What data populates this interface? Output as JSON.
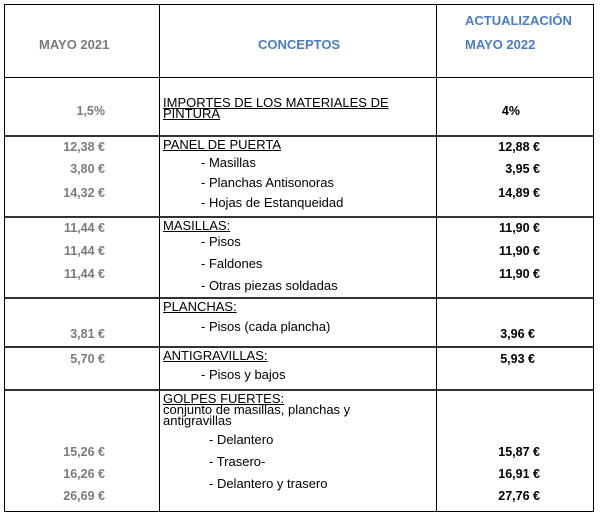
{
  "header": {
    "col_old": "MAYO 2021",
    "col_concepts": "CONCEPTOS",
    "col_new_line1": "ACTUALIZACIÓN",
    "col_new_line2": "MAYO 2022"
  },
  "rows": {
    "importes": {
      "old": "1,5%",
      "title_line1": "IMPORTES DE LOS MATERIALES DE",
      "title_line2": "PINTURA",
      "new": "4%"
    },
    "panel": {
      "title": "PANEL DE PUERTA",
      "items": [
        "- Masillas",
        "- Planchas Antisonoras",
        "- Hojas de Estanqueidad"
      ],
      "old": [
        "12,38 €",
        "3,80 €",
        "14,32 €"
      ],
      "new": [
        "12,88 €",
        "3,95 €",
        "14,89 €"
      ]
    },
    "masillas": {
      "title": "MASILLAS:",
      "items": [
        "- Pisos",
        "- Faldones",
        "- Otras piezas soldadas"
      ],
      "old": [
        "11,44 €",
        "11,44 €",
        "11,44 €"
      ],
      "new": [
        "11,90 €",
        "11,90 €",
        "11,90 €"
      ]
    },
    "planchas": {
      "title": "PLANCHAS:",
      "items": [
        "- Pisos (cada plancha)"
      ],
      "old": [
        "3,81 €"
      ],
      "new": [
        "3,96 €"
      ]
    },
    "antigravillas": {
      "title": "ANTIGRAVILLAS:",
      "items": [
        "- Pisos y bajos"
      ],
      "old": [
        "5,70 €"
      ],
      "new": [
        "5,93 €"
      ]
    },
    "golpes": {
      "title": "GOLPES FUERTES:",
      "subtitle_line1": "conjunto de masillas, planchas y",
      "subtitle_line2": "antigravillas",
      "items": [
        "- Delantero",
        "- Trasero-",
        "- Delantero y trasero"
      ],
      "old": [
        "15,26 €",
        "16,26 €",
        "26,69 €"
      ],
      "new": [
        "15,87 €",
        "16,91 €",
        "27,76 €"
      ]
    }
  }
}
